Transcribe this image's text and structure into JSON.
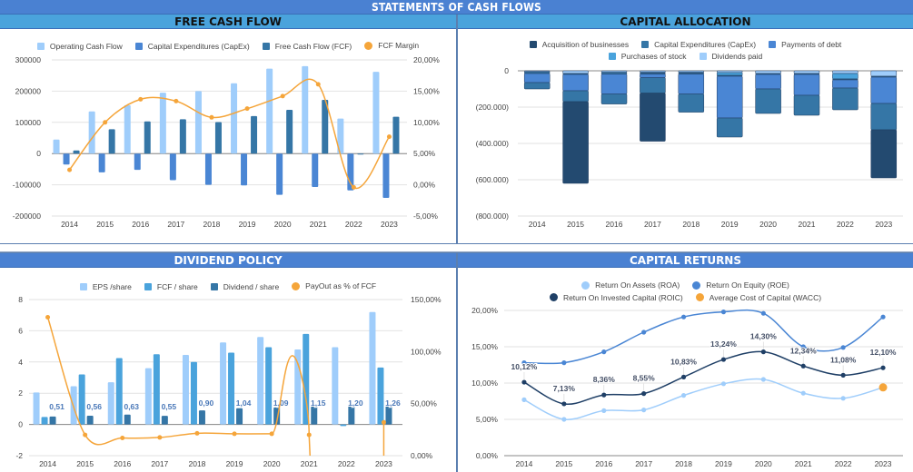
{
  "main_title": "STATEMENTS OF CASH FLOWS",
  "colors": {
    "light_blue": "#9fcdfb",
    "mid_blue": "#4a86d4",
    "steel_blue": "#3576a6",
    "sky_blue": "#4aa3dc",
    "navy": "#234a70",
    "dark_navy": "#1e3a5f",
    "orange": "#f5a53a",
    "roa": "#9fcdfb",
    "roe": "#4a86d4",
    "roic": "#1f3f66"
  },
  "panels": {
    "free_cash_flow": {
      "title": "FREE CASH FLOW",
      "legend": [
        {
          "label": "Operating Cash Flow",
          "shape": "square",
          "color": "#9fcdfb"
        },
        {
          "label": "Capital Expenditures (CapEx)",
          "shape": "square",
          "color": "#4a86d4"
        },
        {
          "label": "Free Cash Flow (FCF)",
          "shape": "square",
          "color": "#3576a6"
        },
        {
          "label": "FCF Margin",
          "shape": "dot",
          "color": "#f5a53a"
        }
      ]
    },
    "capital_allocation": {
      "title": "CAPITAL ALLOCATION",
      "legend": [
        {
          "label": "Acquisition of businesses",
          "shape": "square",
          "color": "#234a70"
        },
        {
          "label": "Capital Expenditures (CapEx)",
          "shape": "square",
          "color": "#3576a6"
        },
        {
          "label": "Payments of debt",
          "shape": "square",
          "color": "#4a86d4"
        },
        {
          "label": "Purchases of stock",
          "shape": "square",
          "color": "#4aa3dc"
        },
        {
          "label": "Dividends paid",
          "shape": "square",
          "color": "#9fcdfb"
        }
      ]
    },
    "dividend_policy": {
      "title": "DIVIDEND POLICY",
      "legend": [
        {
          "label": "EPS /share",
          "shape": "square",
          "color": "#9fcdfb"
        },
        {
          "label": "FCF / share",
          "shape": "square",
          "color": "#4aa3dc"
        },
        {
          "label": "Dividend / share",
          "shape": "square",
          "color": "#3576a6"
        },
        {
          "label": "PayOut as % of FCF",
          "shape": "dot",
          "color": "#f5a53a"
        }
      ]
    },
    "capital_returns": {
      "title": "CAPITAL RETURNS",
      "legend": [
        {
          "label": "Return On Assets (ROA)",
          "shape": "dot",
          "color": "#9fcdfb"
        },
        {
          "label": "Return On Equity (ROE)",
          "shape": "dot",
          "color": "#4a86d4"
        },
        {
          "label": "Return On Invested Capital (ROIC)",
          "shape": "dot",
          "color": "#1f3f66"
        },
        {
          "label": "Average Cost of Capital (WACC)",
          "shape": "dot",
          "color": "#f5a53a"
        }
      ]
    }
  },
  "chart_data": [
    {
      "id": "free_cash_flow",
      "type": "bar",
      "title": "FREE CASH FLOW",
      "categories": [
        "2014",
        "2015",
        "2016",
        "2017",
        "2018",
        "2019",
        "2020",
        "2021",
        "2022",
        "2023"
      ],
      "series": [
        {
          "name": "Operating Cash Flow",
          "type": "bar",
          "axis": "left",
          "values": [
            45000,
            135000,
            155000,
            195000,
            200000,
            225000,
            272000,
            280000,
            112000,
            262000
          ]
        },
        {
          "name": "Capital Expenditures (CapEx)",
          "type": "bar",
          "axis": "left",
          "values": [
            -35000,
            -60000,
            -52000,
            -85000,
            -100000,
            -102000,
            -132000,
            -107000,
            -118000,
            -142000
          ]
        },
        {
          "name": "Free Cash Flow (FCF)",
          "type": "bar",
          "axis": "left",
          "values": [
            10000,
            78000,
            103000,
            110000,
            101000,
            120000,
            140000,
            172000,
            -3000,
            118000
          ]
        },
        {
          "name": "FCF Margin",
          "type": "line",
          "axis": "right",
          "values": [
            2.4,
            10.0,
            13.7,
            13.4,
            10.8,
            12.2,
            14.2,
            16.1,
            -0.4,
            7.7
          ]
        }
      ],
      "left_axis": {
        "ticks": [
          "300000",
          "200000",
          "100000",
          "0",
          "-100000",
          "-200000"
        ],
        "range": [
          -200000,
          300000
        ]
      },
      "right_axis": {
        "ticks": [
          "20,00%",
          "15,00%",
          "10,00%",
          "5,00%",
          "0,00%",
          "-5,00%"
        ],
        "range": [
          -5,
          20
        ]
      },
      "legend_position": "top",
      "grid": true
    },
    {
      "id": "capital_allocation",
      "type": "bar",
      "stacked": true,
      "title": "CAPITAL ALLOCATION",
      "categories": [
        "2014",
        "2015",
        "2016",
        "2017",
        "2018",
        "2019",
        "2020",
        "2021",
        "2022",
        "2023"
      ],
      "series": [
        {
          "name": "Dividends paid",
          "values": [
            -5000,
            -15000,
            -8000,
            -8000,
            -8000,
            -10000,
            -15000,
            -15000,
            -15000,
            -30000
          ]
        },
        {
          "name": "Purchases of stock",
          "values": [
            0,
            0,
            0,
            -5000,
            -5000,
            -15000,
            0,
            0,
            -30000,
            0
          ]
        },
        {
          "name": "Payments of debt",
          "values": [
            -10000,
            -5000,
            -10000,
            -5000,
            -5000,
            -5000,
            -5000,
            -5000,
            -5000,
            -5000
          ]
        },
        {
          "name": "Payments of debt (2)",
          "hidden_legend": true,
          "values": [
            -50000,
            -90000,
            -110000,
            -20000,
            -110000,
            -230000,
            -80000,
            -115000,
            -45000,
            -145000
          ]
        },
        {
          "name": "Capital Expenditures (CapEx)",
          "values": [
            -35000,
            -60000,
            -55000,
            -85000,
            -100000,
            -105000,
            -135000,
            -110000,
            -120000,
            -145000
          ]
        },
        {
          "name": "Acquisition of businesses",
          "values": [
            0,
            -450000,
            0,
            -265000,
            0,
            0,
            0,
            0,
            0,
            -265000
          ]
        }
      ],
      "y_axis": {
        "ticks": [
          "0",
          "(200.000)",
          "(400.000)",
          "(600.000)",
          "(800.000)"
        ],
        "range": [
          -800000,
          0
        ]
      },
      "legend_position": "top",
      "grid": true
    },
    {
      "id": "dividend_policy",
      "type": "bar",
      "title": "DIVIDEND POLICY",
      "categories": [
        "2014",
        "2015",
        "2016",
        "2017",
        "2018",
        "2019",
        "2020",
        "2021",
        "2022",
        "2023"
      ],
      "series": [
        {
          "name": "EPS /share",
          "type": "bar",
          "axis": "left",
          "values": [
            2.05,
            2.45,
            2.7,
            3.6,
            4.45,
            5.25,
            5.6,
            4.8,
            4.95,
            7.2
          ]
        },
        {
          "name": "FCF / share",
          "type": "bar",
          "axis": "left",
          "values": [
            0.48,
            3.2,
            4.25,
            4.5,
            4.0,
            4.6,
            4.95,
            5.8,
            -0.1,
            3.65
          ]
        },
        {
          "name": "Dividend / share",
          "type": "bar",
          "axis": "left",
          "values": [
            0.51,
            0.56,
            0.63,
            0.55,
            0.9,
            1.04,
            1.09,
            1.15,
            1.2,
            1.26
          ],
          "labels": [
            "0,51",
            "0,56",
            "0,63",
            "0,55",
            "0,90",
            "1,04",
            "1,09",
            "1,15",
            "1,20",
            "1,26"
          ]
        },
        {
          "name": "PayOut as % of FCF",
          "type": "line",
          "axis": "right",
          "values": [
            133,
            20,
            17,
            17.5,
            21.5,
            21,
            21,
            20,
            null,
            32
          ]
        }
      ],
      "left_axis": {
        "ticks": [
          "8",
          "6",
          "4",
          "2",
          "0",
          "-2"
        ],
        "range": [
          -2,
          8
        ]
      },
      "right_axis": {
        "ticks": [
          "150,00%",
          "100,00%",
          "50,00%",
          "0,00%"
        ],
        "range": [
          0,
          150
        ]
      },
      "legend_position": "top",
      "grid": true
    },
    {
      "id": "capital_returns",
      "type": "line",
      "title": "CAPITAL RETURNS",
      "categories": [
        "2014",
        "2015",
        "2016",
        "2017",
        "2018",
        "2019",
        "2020",
        "2021",
        "2022",
        "2023"
      ],
      "series": [
        {
          "name": "Return On Assets (ROA)",
          "values": [
            7.7,
            5.0,
            6.2,
            6.3,
            8.3,
            9.9,
            10.5,
            8.6,
            7.9,
            9.4
          ]
        },
        {
          "name": "Return On Equity (ROE)",
          "values": [
            12.8,
            12.8,
            14.3,
            17.0,
            19.1,
            19.8,
            19.6,
            15.0,
            14.9,
            19.1
          ]
        },
        {
          "name": "Return On Invested Capital (ROIC)",
          "values": [
            10.12,
            7.13,
            8.36,
            8.55,
            10.83,
            13.24,
            14.3,
            12.34,
            11.08,
            12.1
          ],
          "labels": [
            "10,12%",
            "7,13%",
            "8,36%",
            "8,55%",
            "10,83%",
            "13,24%",
            "14,30%",
            "12,34%",
            "11,08%",
            "12,10%"
          ]
        },
        {
          "name": "Average Cost of Capital (WACC)",
          "values": [
            null,
            null,
            null,
            null,
            null,
            null,
            null,
            null,
            null,
            9.4
          ]
        }
      ],
      "y_axis": {
        "ticks": [
          "20,00%",
          "15,00%",
          "10,00%",
          "5,00%",
          "0,00%"
        ],
        "range": [
          0,
          20
        ]
      },
      "legend_position": "top",
      "grid": true
    }
  ]
}
